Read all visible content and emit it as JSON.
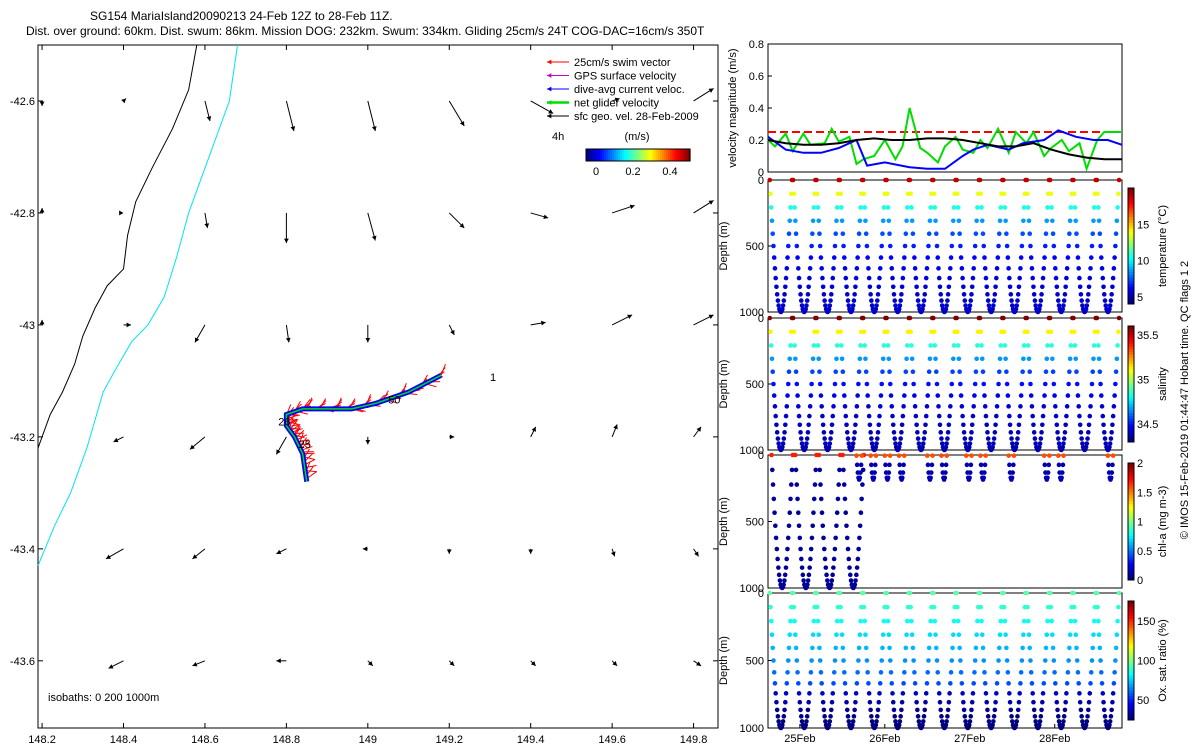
{
  "title_line1": "SG154 MariaIsland20090213 24-Feb 12Z to 28-Feb 11Z.",
  "title_line2": "Dist. over ground: 60km. Dist. swum: 86km. Mission DOG: 232km. Swum: 334km. Gliding 25cm/s 24T COG-DAC=16cm/s 350T",
  "colors": {
    "swim": "#ff0000",
    "gps": "#cc00cc",
    "dac": "#0000ff",
    "net": "#00dd00",
    "geo": "#000000",
    "coast": "#000000",
    "isobath": "#00e5ee"
  },
  "chart_data": [
    {
      "type": "scatter",
      "panel": "map",
      "xlim": [
        148.19,
        149.86
      ],
      "ylim": [
        -43.72,
        -42.5
      ],
      "xticks": [
        148.2,
        148.4,
        148.6,
        148.8,
        149,
        149.2,
        149.4,
        149.6,
        149.8
      ],
      "xtick_labels": [
        "148.2",
        "148.4",
        "148.6",
        "148.8",
        "149",
        "149.2",
        "149.4",
        "149.6",
        "149.8"
      ],
      "yticks": [
        -42.6,
        -42.8,
        -43,
        -43.2,
        -43.4,
        -43.6
      ],
      "ytick_labels": [
        "-42.6",
        "-42.8",
        "-43",
        "-43.2",
        "-43.4",
        "-43.6"
      ],
      "legend": [
        {
          "label": "25cm/s swim vector",
          "color": "#ff0000"
        },
        {
          "label": "GPS surface velocity",
          "color": "#cc00cc"
        },
        {
          "label": "dive-avg current veloc.",
          "color": "#0000ff"
        },
        {
          "label": "net glider velocity",
          "color": "#00dd00"
        },
        {
          "label": "sfc geo. vel. 28-Feb-2009",
          "color": "#000000"
        }
      ],
      "legend_placement": "top-right",
      "legend_note": "4h",
      "colorbar": {
        "label": "(m/s)",
        "range": [
          0,
          0.5
        ],
        "tick_labels": [
          "0",
          "0.2",
          "0.4"
        ]
      },
      "isobaths_label": "isobaths: 0   200  1000m",
      "track_labels": [
        {
          "text": "1",
          "x": 149.3,
          "y": -43.1
        },
        {
          "text": "26",
          "x": 148.78,
          "y": -43.18
        },
        {
          "text": "50",
          "x": 149.05,
          "y": -43.14
        },
        {
          "text": "25",
          "x": 148.83,
          "y": -43.22
        }
      ],
      "glider_track": [
        [
          149.18,
          -43.09
        ],
        [
          149.1,
          -43.12
        ],
        [
          149.02,
          -43.14
        ],
        [
          148.96,
          -43.15
        ],
        [
          148.9,
          -43.15
        ],
        [
          148.84,
          -43.15
        ],
        [
          148.8,
          -43.16
        ],
        [
          148.8,
          -43.18
        ],
        [
          148.82,
          -43.2
        ],
        [
          148.84,
          -43.23
        ],
        [
          148.85,
          -43.28
        ]
      ],
      "coastline": [
        [
          148.58,
          -42.5
        ],
        [
          148.56,
          -42.58
        ],
        [
          148.52,
          -42.65
        ],
        [
          148.47,
          -42.72
        ],
        [
          148.43,
          -42.78
        ],
        [
          148.41,
          -42.84
        ],
        [
          148.4,
          -42.9
        ],
        [
          148.36,
          -42.93
        ],
        [
          148.33,
          -42.97
        ],
        [
          148.3,
          -43.02
        ],
        [
          148.28,
          -43.07
        ],
        [
          148.25,
          -43.12
        ],
        [
          148.22,
          -43.16
        ],
        [
          148.19,
          -43.22
        ]
      ],
      "isobath_1000m": [
        [
          148.68,
          -42.5
        ],
        [
          148.66,
          -42.6
        ],
        [
          148.61,
          -42.7
        ],
        [
          148.56,
          -42.8
        ],
        [
          148.53,
          -42.88
        ],
        [
          148.5,
          -42.95
        ],
        [
          148.46,
          -43.0
        ],
        [
          148.42,
          -43.03
        ],
        [
          148.38,
          -43.08
        ],
        [
          148.35,
          -43.12
        ],
        [
          148.33,
          -43.17
        ],
        [
          148.31,
          -43.22
        ],
        [
          148.27,
          -43.3
        ],
        [
          148.23,
          -43.36
        ],
        [
          148.19,
          -43.43
        ]
      ],
      "sfc_geo_vectors": [
        {
          "x": 148.2,
          "y": -42.6,
          "u": 0.0,
          "v": -0.02
        },
        {
          "x": 148.4,
          "y": -42.6,
          "u": 0.01,
          "v": 0.01
        },
        {
          "x": 148.6,
          "y": -42.6,
          "u": 0.02,
          "v": -0.08
        },
        {
          "x": 148.8,
          "y": -42.6,
          "u": 0.03,
          "v": -0.12
        },
        {
          "x": 149.0,
          "y": -42.6,
          "u": 0.03,
          "v": -0.12
        },
        {
          "x": 149.2,
          "y": -42.6,
          "u": 0.06,
          "v": -0.1
        },
        {
          "x": 149.4,
          "y": -42.6,
          "u": 0.09,
          "v": -0.05
        },
        {
          "x": 149.6,
          "y": -42.6,
          "u": 0.03,
          "v": 0.01
        },
        {
          "x": 149.8,
          "y": -42.6,
          "u": 0.08,
          "v": 0.05
        },
        {
          "x": 148.2,
          "y": -42.8,
          "u": 0.0,
          "v": 0.02
        },
        {
          "x": 148.4,
          "y": -42.8,
          "u": 0.0,
          "v": 0.0
        },
        {
          "x": 148.6,
          "y": -42.8,
          "u": 0.01,
          "v": -0.06
        },
        {
          "x": 148.8,
          "y": -42.8,
          "u": 0.0,
          "v": -0.12
        },
        {
          "x": 149.0,
          "y": -42.8,
          "u": 0.03,
          "v": -0.11
        },
        {
          "x": 149.2,
          "y": -42.8,
          "u": 0.06,
          "v": -0.06
        },
        {
          "x": 149.4,
          "y": -42.8,
          "u": 0.07,
          "v": -0.02
        },
        {
          "x": 149.6,
          "y": -42.8,
          "u": 0.09,
          "v": 0.03
        },
        {
          "x": 149.8,
          "y": -42.8,
          "u": 0.08,
          "v": 0.05
        },
        {
          "x": 148.2,
          "y": -43.0,
          "u": 0.0,
          "v": 0.02
        },
        {
          "x": 148.4,
          "y": -43.0,
          "u": 0.03,
          "v": 0.0
        },
        {
          "x": 148.6,
          "y": -43.0,
          "u": -0.04,
          "v": -0.07
        },
        {
          "x": 148.8,
          "y": -43.0,
          "u": 0.01,
          "v": -0.07
        },
        {
          "x": 149.0,
          "y": -43.0,
          "u": 0.0,
          "v": -0.07
        },
        {
          "x": 149.2,
          "y": -43.0,
          "u": 0.02,
          "v": -0.04
        },
        {
          "x": 149.4,
          "y": -43.0,
          "u": 0.06,
          "v": 0.01
        },
        {
          "x": 149.6,
          "y": -43.0,
          "u": 0.08,
          "v": 0.04
        },
        {
          "x": 149.8,
          "y": -43.0,
          "u": 0.08,
          "v": 0.04
        },
        {
          "x": 148.4,
          "y": -43.2,
          "u": -0.04,
          "v": -0.02
        },
        {
          "x": 148.6,
          "y": -43.2,
          "u": -0.06,
          "v": -0.05
        },
        {
          "x": 148.8,
          "y": -43.2,
          "u": -0.04,
          "v": -0.07
        },
        {
          "x": 149.0,
          "y": -43.2,
          "u": 0.0,
          "v": -0.03
        },
        {
          "x": 149.2,
          "y": -43.2,
          "u": 0.02,
          "v": 0.0
        },
        {
          "x": 149.4,
          "y": -43.2,
          "u": 0.02,
          "v": 0.04
        },
        {
          "x": 149.6,
          "y": -43.2,
          "u": 0.02,
          "v": 0.05
        },
        {
          "x": 149.8,
          "y": -43.2,
          "u": 0.03,
          "v": 0.04
        },
        {
          "x": 148.4,
          "y": -43.4,
          "u": -0.07,
          "v": -0.04
        },
        {
          "x": 148.6,
          "y": -43.4,
          "u": -0.05,
          "v": -0.04
        },
        {
          "x": 148.8,
          "y": -43.4,
          "u": -0.04,
          "v": -0.02
        },
        {
          "x": 149.0,
          "y": -43.4,
          "u": -0.02,
          "v": 0.0
        },
        {
          "x": 149.2,
          "y": -43.4,
          "u": 0.0,
          "v": -0.02
        },
        {
          "x": 149.4,
          "y": -43.4,
          "u": 0.0,
          "v": -0.02
        },
        {
          "x": 149.6,
          "y": -43.4,
          "u": 0.01,
          "v": -0.03
        },
        {
          "x": 149.8,
          "y": -43.4,
          "u": 0.02,
          "v": -0.03
        },
        {
          "x": 148.4,
          "y": -43.6,
          "u": -0.06,
          "v": -0.03
        },
        {
          "x": 148.6,
          "y": -43.6,
          "u": -0.05,
          "v": -0.02
        },
        {
          "x": 148.8,
          "y": -43.6,
          "u": -0.04,
          "v": 0.0
        },
        {
          "x": 149.0,
          "y": -43.6,
          "u": 0.02,
          "v": -0.02
        },
        {
          "x": 149.2,
          "y": -43.6,
          "u": 0.02,
          "v": -0.02
        },
        {
          "x": 149.4,
          "y": -43.6,
          "u": 0.02,
          "v": -0.02
        },
        {
          "x": 149.6,
          "y": -43.6,
          "u": 0.02,
          "v": -0.02
        },
        {
          "x": 149.8,
          "y": -43.6,
          "u": 0.03,
          "v": -0.02
        }
      ]
    },
    {
      "type": "line",
      "panel": "velocity",
      "ylabel": "velocity magnitude (m/s)",
      "ylim": [
        0,
        0.8
      ],
      "yticks": [
        0,
        0.2,
        0.4,
        0.6,
        0.8
      ],
      "ytick_labels": [
        "0",
        "0.2",
        "0.4",
        "0.6",
        "0.8"
      ],
      "xlim": [
        0,
        1
      ],
      "series": [
        {
          "color": "#ff0000",
          "dashed": true,
          "x": [
            0,
            1
          ],
          "y": [
            0.25,
            0.25
          ]
        },
        {
          "color": "#00dd00",
          "x": [
            0,
            0.02,
            0.05,
            0.07,
            0.1,
            0.12,
            0.16,
            0.18,
            0.2,
            0.23,
            0.25,
            0.27,
            0.3,
            0.33,
            0.36,
            0.38,
            0.4,
            0.43,
            0.45,
            0.48,
            0.5,
            0.53,
            0.55,
            0.58,
            0.6,
            0.62,
            0.65,
            0.68,
            0.7,
            0.73,
            0.75,
            0.78,
            0.8,
            0.83,
            0.85,
            0.88,
            0.9,
            0.93,
            0.95,
            0.98,
            1.0
          ],
          "y": [
            0.2,
            0.16,
            0.24,
            0.13,
            0.24,
            0.17,
            0.18,
            0.27,
            0.19,
            0.22,
            0.05,
            0.08,
            0.1,
            0.2,
            0.08,
            0.16,
            0.4,
            0.15,
            0.12,
            0.06,
            0.16,
            0.22,
            0.14,
            0.12,
            0.2,
            0.15,
            0.27,
            0.12,
            0.25,
            0.18,
            0.25,
            0.1,
            0.15,
            0.2,
            0.13,
            0.18,
            0.02,
            0.2,
            0.25,
            0.25,
            0.25
          ]
        },
        {
          "color": "#0000ff",
          "x": [
            0,
            0.05,
            0.1,
            0.15,
            0.2,
            0.25,
            0.28,
            0.33,
            0.4,
            0.45,
            0.5,
            0.55,
            0.58,
            0.62,
            0.68,
            0.72,
            0.78,
            0.82,
            0.87,
            0.92,
            0.96,
            1.0
          ],
          "y": [
            0.22,
            0.14,
            0.12,
            0.12,
            0.15,
            0.2,
            0.04,
            0.06,
            0.03,
            0.02,
            0.02,
            0.1,
            0.14,
            0.17,
            0.14,
            0.18,
            0.2,
            0.26,
            0.22,
            0.2,
            0.2,
            0.17
          ]
        },
        {
          "color": "#000000",
          "x": [
            0,
            0.05,
            0.1,
            0.15,
            0.2,
            0.25,
            0.3,
            0.35,
            0.4,
            0.45,
            0.5,
            0.55,
            0.6,
            0.65,
            0.7,
            0.75,
            0.8,
            0.85,
            0.9,
            0.95,
            1.0
          ],
          "y": [
            0.2,
            0.18,
            0.17,
            0.17,
            0.18,
            0.2,
            0.21,
            0.2,
            0.2,
            0.21,
            0.21,
            0.2,
            0.18,
            0.16,
            0.16,
            0.18,
            0.14,
            0.11,
            0.09,
            0.08,
            0.08
          ]
        }
      ]
    },
    {
      "type": "scatter",
      "panel": "temperature",
      "ylabel": "Depth (m)",
      "ylim": [
        1000,
        0
      ],
      "yticks": [
        0,
        500,
        1000
      ],
      "ytick_labels": [
        "0",
        "500",
        "1000"
      ],
      "colorbar_label": "temperature (°C)",
      "colorbar_ticks": [
        "5",
        "10",
        "15"
      ],
      "colorbar_range": [
        4,
        20
      ],
      "dives": 15,
      "max_depth": 1000,
      "surface_value": 19,
      "deep_value": 5
    },
    {
      "type": "scatter",
      "panel": "salinity",
      "ylabel": "Depth (m)",
      "ylim": [
        1000,
        0
      ],
      "yticks": [
        0,
        500,
        1000
      ],
      "ytick_labels": [
        "0",
        "500",
        "1000"
      ],
      "colorbar_label": "salinity",
      "colorbar_ticks": [
        "34.5",
        "35",
        "35.5"
      ],
      "colorbar_range": [
        34.3,
        35.6
      ],
      "dives": 15,
      "max_depth": 1000,
      "surface_value": 35.6,
      "deep_value": 34.35
    },
    {
      "type": "scatter",
      "panel": "chla",
      "ylabel": "Depth (m)",
      "ylim": [
        1000,
        0
      ],
      "yticks": [
        0,
        500,
        1000
      ],
      "ytick_labels": [
        "0",
        "500",
        "1000"
      ],
      "colorbar_label": "chl-a (mg m-3)",
      "colorbar_ticks": [
        "0",
        "0.5",
        "1",
        "1.5",
        "2"
      ],
      "colorbar_range": [
        0,
        2
      ],
      "full_dives": 4,
      "shallow_dive_times": [
        0.25,
        0.29,
        0.33,
        0.37,
        0.45,
        0.49,
        0.56,
        0.6,
        0.68,
        0.78,
        0.82,
        0.96
      ]
    },
    {
      "type": "scatter",
      "panel": "oxygen",
      "ylabel": "Depth (m)",
      "ylim": [
        1000,
        0
      ],
      "yticks": [
        0,
        500,
        1000
      ],
      "ytick_labels": [
        "0",
        "500",
        "1000"
      ],
      "colorbar_label": "Ox. sat. ratio (%)",
      "colorbar_ticks": [
        "50",
        "100",
        "150"
      ],
      "colorbar_range": [
        25,
        175
      ],
      "dives": 15,
      "max_depth": 1000,
      "xtick_labels": [
        "25Feb",
        "26Feb",
        "27Feb",
        "28Feb"
      ]
    }
  ],
  "side_note": "© IMOS 15-Feb-2019 01:44:47 Hobart time. QC flags 1  2"
}
